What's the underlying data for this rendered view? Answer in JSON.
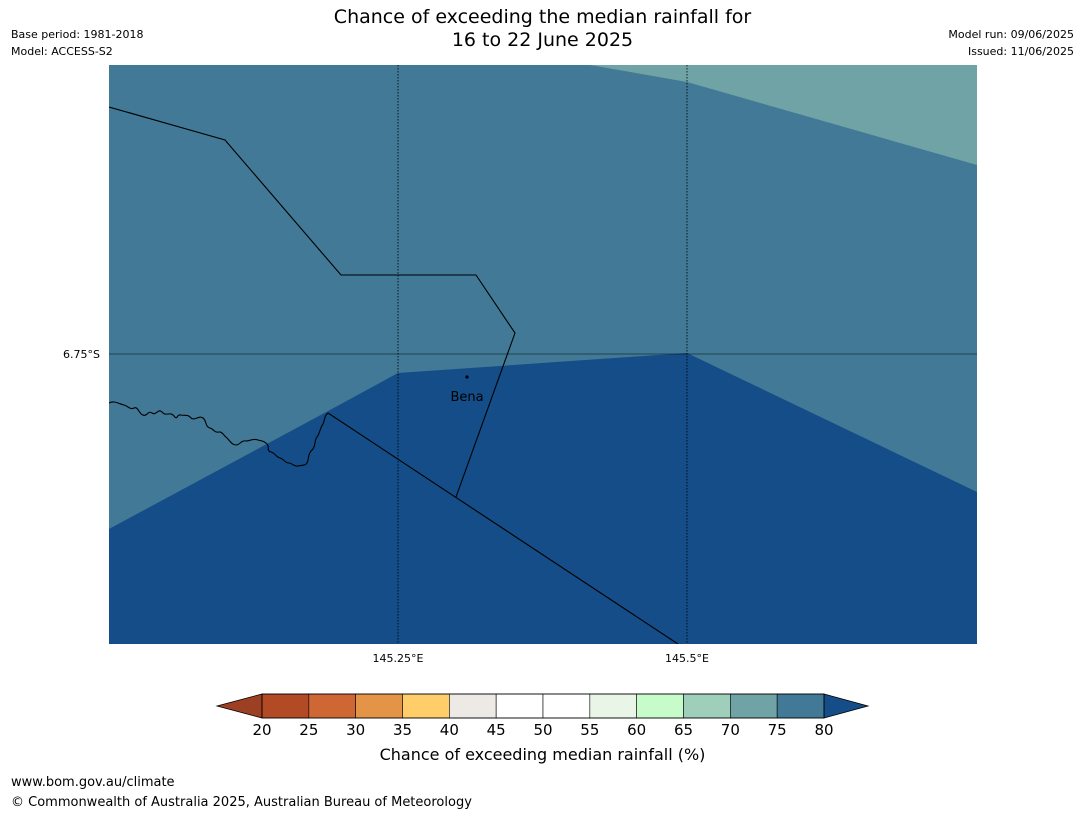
{
  "title": {
    "line1": "Chance of exceeding the median rainfall for",
    "line2": "16 to 22 June 2025"
  },
  "meta_left": {
    "base_period": "Base period: 1981-2018",
    "model": "Model: ACCESS-S2"
  },
  "meta_right": {
    "model_run": "Model run: 09/06/2025",
    "issued": "Issued: 11/06/2025"
  },
  "map": {
    "lat_label": "6.75°S",
    "lon_labels": [
      "145.25°E",
      "145.5°E"
    ],
    "place": "Bena",
    "zone_colors": {
      "65-70": "#6fa3a6",
      "75-80": "#417996",
      "80+": "#144d87"
    }
  },
  "colorbar": {
    "tick_labels": [
      "20",
      "25",
      "30",
      "35",
      "40",
      "45",
      "50",
      "55",
      "60",
      "65",
      "70",
      "75",
      "80"
    ],
    "under_color": "#9d3f22",
    "over_color": "#144d87",
    "colors": [
      "#b34a26",
      "#cf6734",
      "#e39446",
      "#ffcd69",
      "#ede9e4",
      "#ffffff",
      "#ffffff",
      "#e8f5e7",
      "#c8fbca",
      "#9fcfbb",
      "#6fa3a6",
      "#417996"
    ],
    "title": "Chance of exceeding median rainfall (%)"
  },
  "footer": {
    "url": "www.bom.gov.au/climate",
    "copyright": "© Commonwealth of Australia 2025, Australian Bureau of Meteorology"
  }
}
